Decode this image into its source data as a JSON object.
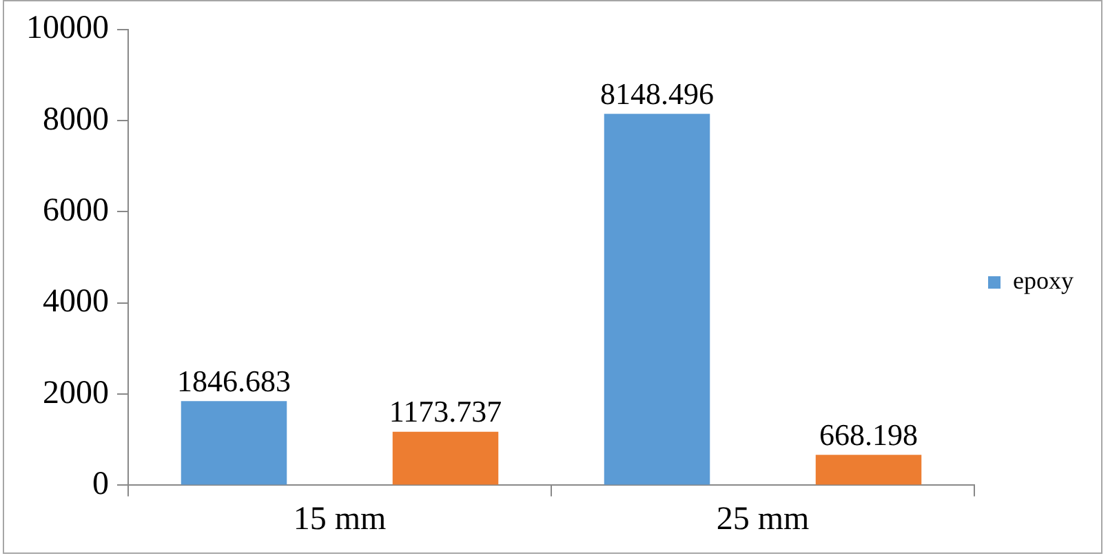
{
  "chart_data": {
    "type": "bar",
    "categories": [
      "15 mm",
      "25 mm"
    ],
    "series": [
      {
        "name": "epoxy",
        "color": "#5b9bd5",
        "values": [
          1846.683,
          8148.496
        ]
      },
      {
        "color": "#ed7d31",
        "values": [
          1173.737,
          668.198
        ]
      }
    ],
    "ylim": [
      0,
      10000
    ],
    "yticks": [
      0,
      2000,
      4000,
      6000,
      8000,
      10000
    ],
    "grid": false,
    "legend": "right",
    "data_labels": true
  }
}
